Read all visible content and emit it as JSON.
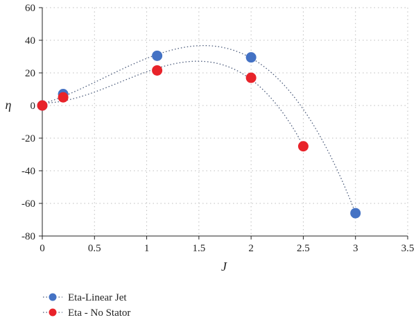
{
  "chart_data": {
    "type": "scatter",
    "title": "",
    "xlabel": "J",
    "ylabel": "η",
    "xlim": [
      0,
      3.5
    ],
    "ylim": [
      -80,
      60
    ],
    "xticks": [
      "0",
      "0.5",
      "1",
      "1.5",
      "2",
      "2.5",
      "3",
      "3.5"
    ],
    "yticks": [
      "60",
      "40",
      "20",
      "0",
      "-20",
      "-40",
      "-60",
      "-80"
    ],
    "grid": true,
    "legend_position": "bottom-left",
    "series": [
      {
        "name": "Eta-Linear Jet",
        "color": "#4472c4",
        "x": [
          0,
          0.2,
          1.1,
          2.0,
          3.0
        ],
        "y": [
          0,
          7,
          30.5,
          29.5,
          -66
        ],
        "trend": "polynomial"
      },
      {
        "name": "Eta - No Stator",
        "color": "#e8232a",
        "x": [
          0,
          0.2,
          1.1,
          2.0,
          2.5
        ],
        "y": [
          0,
          5,
          21.5,
          17,
          -25
        ],
        "trend": "polynomial"
      }
    ]
  }
}
